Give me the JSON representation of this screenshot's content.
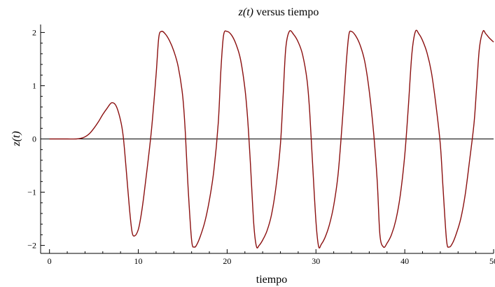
{
  "chart_data": {
    "type": "line",
    "title_prefix": "z(t)",
    "title_suffix": " versus tiempo",
    "xlabel": "tiempo",
    "ylabel": "z(t)",
    "xlim": [
      -1,
      50
    ],
    "ylim": [
      -2.15,
      2.15
    ],
    "x_ticks": [
      0,
      10,
      20,
      30,
      40,
      50
    ],
    "y_ticks": [
      -2,
      -1,
      0,
      1,
      2
    ],
    "x_minor_step": 2,
    "y_minor_step": 0.2,
    "grid": false,
    "baseline_y": 0,
    "colors": {
      "series": "#8b1010",
      "baseline": "#000000",
      "axes": "#000000"
    },
    "series": [
      {
        "x": [
          0,
          1,
          2,
          3,
          3.5,
          4,
          4.5,
          5,
          5.5,
          6,
          6.5,
          7,
          7.5,
          8,
          8.3,
          8.6,
          9,
          9.3,
          9.6,
          10,
          10.3,
          10.6,
          11,
          11.5,
          12,
          12.3,
          12.6,
          13,
          13.5,
          14,
          14.5,
          15,
          15.3,
          15.6,
          16,
          16.3,
          16.6,
          17,
          17.5,
          18,
          18.5,
          19,
          19.3,
          19.6,
          20,
          20.5,
          21,
          21.5,
          22,
          22.3,
          22.6,
          23,
          23.3,
          23.6,
          24,
          24.5,
          25,
          25.5,
          26,
          26.3,
          26.6,
          27,
          27.5,
          28,
          28.5,
          29,
          29.3,
          29.6,
          30,
          30.3,
          30.6,
          31,
          31.5,
          32,
          32.5,
          33,
          33.4,
          33.7,
          34,
          34.5,
          35,
          35.5,
          36,
          36.5,
          36.9,
          37.2,
          37.6,
          38,
          38.5,
          39,
          39.5,
          40,
          40.4,
          40.8,
          41.2,
          41.6,
          42,
          42.5,
          43,
          43.5,
          44,
          44.3,
          44.7,
          45,
          45.4,
          45.8,
          46.3,
          46.8,
          47.3,
          47.8,
          48.1,
          48.4,
          48.8,
          49.1,
          49.5,
          50
        ],
        "y": [
          0,
          0,
          0,
          0,
          0.01,
          0.04,
          0.1,
          0.2,
          0.32,
          0.46,
          0.58,
          0.68,
          0.62,
          0.35,
          0.05,
          -0.5,
          -1.3,
          -1.75,
          -1.82,
          -1.7,
          -1.45,
          -1.1,
          -0.55,
          0.2,
          1.2,
          1.9,
          2.02,
          1.98,
          1.85,
          1.65,
          1.35,
          0.8,
          0.1,
          -0.9,
          -1.9,
          -2.03,
          -1.98,
          -1.82,
          -1.55,
          -1.15,
          -0.6,
          0.3,
          1.3,
          1.95,
          2.02,
          1.95,
          1.78,
          1.5,
          0.95,
          0.4,
          -0.4,
          -1.6,
          -2.02,
          -2.0,
          -1.9,
          -1.72,
          -1.42,
          -0.9,
          -0.1,
          0.8,
          1.7,
          2.02,
          1.96,
          1.82,
          1.58,
          1.1,
          0.5,
          -0.4,
          -1.55,
          -2.02,
          -1.98,
          -1.86,
          -1.62,
          -1.25,
          -0.65,
          0.4,
          1.4,
          1.95,
          2.02,
          1.93,
          1.75,
          1.45,
          0.9,
          0.1,
          -0.8,
          -1.8,
          -2.03,
          -1.96,
          -1.8,
          -1.52,
          -1.05,
          -0.3,
          0.6,
          1.6,
          2.02,
          1.97,
          1.85,
          1.62,
          1.25,
          0.65,
          -0.1,
          -0.9,
          -1.9,
          -2.03,
          -1.95,
          -1.78,
          -1.5,
          -1.05,
          -0.4,
          0.3,
          1.0,
          1.7,
          2.02,
          1.98,
          1.9,
          1.82
        ]
      }
    ]
  }
}
